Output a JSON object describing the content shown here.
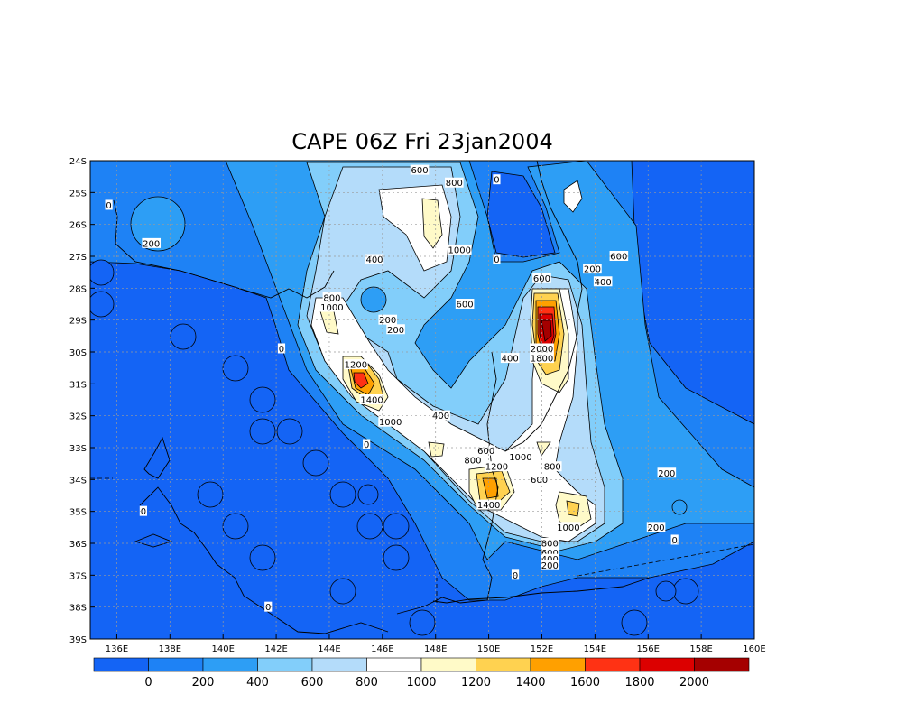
{
  "chart_data": {
    "type": "heatmap",
    "title": "CAPE 06Z Fri 23jan2004",
    "xlim": [
      135,
      160
    ],
    "ylim": [
      -39,
      -24
    ],
    "x_ticks": [
      136,
      138,
      140,
      142,
      144,
      146,
      148,
      150,
      152,
      154,
      156,
      158,
      160
    ],
    "x_tick_labels": [
      "136E",
      "138E",
      "140E",
      "142E",
      "144E",
      "146E",
      "148E",
      "150E",
      "152E",
      "154E",
      "156E",
      "158E",
      "160E"
    ],
    "y_ticks": [
      -24,
      -25,
      -26,
      -27,
      -28,
      -29,
      -30,
      -31,
      -32,
      -33,
      -34,
      -35,
      -36,
      -37,
      -38,
      -39
    ],
    "y_tick_labels": [
      "24S",
      "25S",
      "26S",
      "27S",
      "28S",
      "29S",
      "30S",
      "31S",
      "32S",
      "33S",
      "34S",
      "35S",
      "36S",
      "37S",
      "38S",
      "39S"
    ],
    "grid": true,
    "colorbar": {
      "levels": [
        "0",
        "200",
        "400",
        "600",
        "800",
        "1000",
        "1200",
        "1400",
        "1600",
        "1800",
        "2000"
      ],
      "colors": [
        "#1464f5",
        "#1e82f5",
        "#2d9ef5",
        "#82cefa",
        "#b4dcfa",
        "#ffffff",
        "#fffac8",
        "#ffd250",
        "#ffa000",
        "#ff3214",
        "#dc0000",
        "#a50000"
      ]
    },
    "contour_labels": [
      {
        "text": "600",
        "lon": 147.4,
        "lat": -24.3
      },
      {
        "text": "800",
        "lon": 148.7,
        "lat": -24.7
      },
      {
        "text": "0",
        "lon": 150.3,
        "lat": -24.6
      },
      {
        "text": "0",
        "lon": 135.7,
        "lat": -25.4
      },
      {
        "text": "200",
        "lon": 137.3,
        "lat": -26.6
      },
      {
        "text": "1000",
        "lon": 148.9,
        "lat": -26.8
      },
      {
        "text": "0",
        "lon": 150.3,
        "lat": -27.1
      },
      {
        "text": "400",
        "lon": 145.7,
        "lat": -27.1
      },
      {
        "text": "600",
        "lon": 154.9,
        "lat": -27.0
      },
      {
        "text": "200",
        "lon": 153.9,
        "lat": -27.4
      },
      {
        "text": "400",
        "lon": 154.3,
        "lat": -27.8
      },
      {
        "text": "600",
        "lon": 152.0,
        "lat": -27.7
      },
      {
        "text": "800",
        "lon": 144.1,
        "lat": -28.3
      },
      {
        "text": "1000",
        "lon": 144.1,
        "lat": -28.6
      },
      {
        "text": "600",
        "lon": 149.1,
        "lat": -28.5
      },
      {
        "text": "200",
        "lon": 146.2,
        "lat": -29.0
      },
      {
        "text": "200",
        "lon": 146.5,
        "lat": -29.3
      },
      {
        "text": "0",
        "lon": 142.2,
        "lat": -29.9
      },
      {
        "text": "2000",
        "lon": 152.0,
        "lat": -29.9
      },
      {
        "text": "1800",
        "lon": 152.0,
        "lat": -30.2
      },
      {
        "text": "400",
        "lon": 150.8,
        "lat": -30.2
      },
      {
        "text": "1200",
        "lon": 145.0,
        "lat": -30.4
      },
      {
        "text": "1400",
        "lon": 145.6,
        "lat": -31.5
      },
      {
        "text": "400",
        "lon": 148.2,
        "lat": -32.0
      },
      {
        "text": "1000",
        "lon": 146.3,
        "lat": -32.2
      },
      {
        "text": "0",
        "lon": 145.4,
        "lat": -32.9
      },
      {
        "text": "600",
        "lon": 149.9,
        "lat": -33.1
      },
      {
        "text": "1000",
        "lon": 151.2,
        "lat": -33.3
      },
      {
        "text": "800",
        "lon": 149.4,
        "lat": -33.4
      },
      {
        "text": "1200",
        "lon": 150.3,
        "lat": -33.6
      },
      {
        "text": "800",
        "lon": 152.4,
        "lat": -33.6
      },
      {
        "text": "600",
        "lon": 151.9,
        "lat": -34.0
      },
      {
        "text": "200",
        "lon": 156.7,
        "lat": -33.8
      },
      {
        "text": "1400",
        "lon": 150.0,
        "lat": -34.8
      },
      {
        "text": "0",
        "lon": 137.0,
        "lat": -35.0
      },
      {
        "text": "200",
        "lon": 156.3,
        "lat": -35.5
      },
      {
        "text": "1000",
        "lon": 153.0,
        "lat": -35.5
      },
      {
        "text": "0",
        "lon": 157.0,
        "lat": -35.9
      },
      {
        "text": "800",
        "lon": 152.3,
        "lat": -36.0
      },
      {
        "text": "600",
        "lon": 152.3,
        "lat": -36.3
      },
      {
        "text": "400",
        "lon": 152.3,
        "lat": -36.5
      },
      {
        "text": "200",
        "lon": 152.3,
        "lat": -36.7
      },
      {
        "text": "0",
        "lon": 151.0,
        "lat": -37.0
      },
      {
        "text": "0",
        "lon": 141.7,
        "lat": -38.0
      }
    ]
  }
}
